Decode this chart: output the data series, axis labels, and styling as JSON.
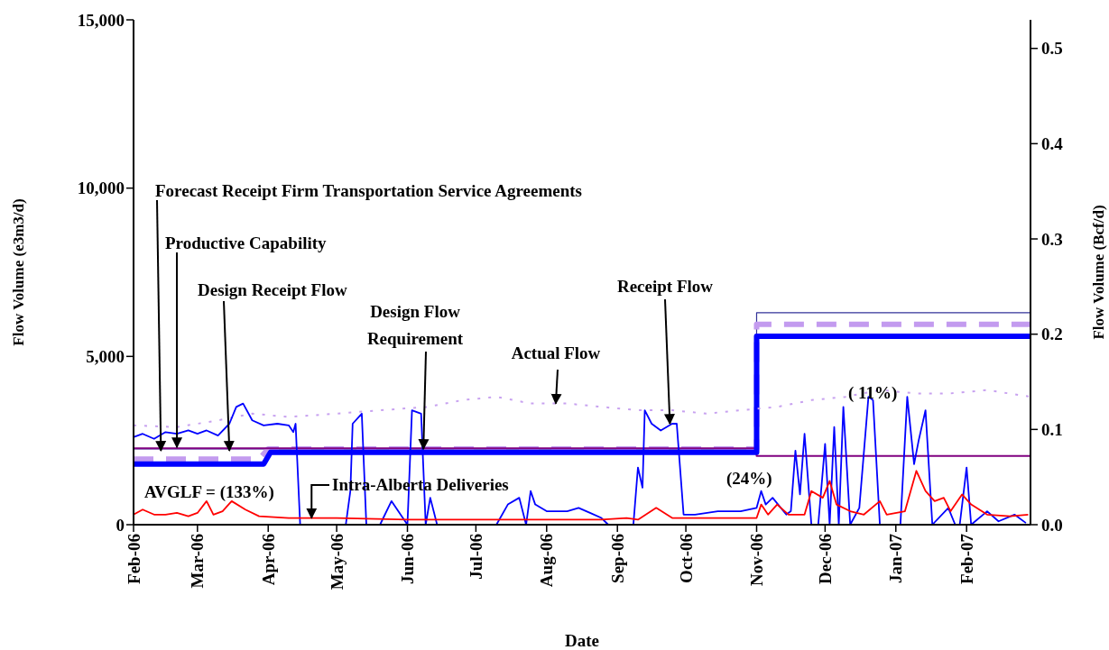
{
  "chart_data": {
    "type": "line",
    "xlabel": "Date",
    "ylabel": "Flow Volume (e3m3/d)",
    "y2label": "Flow Volume (Bcf/d)",
    "xlim": [
      "2006-02-01",
      "2007-03-01"
    ],
    "xticks": [
      {
        "value": "2006-02-01",
        "label": "Feb-06"
      },
      {
        "value": "2006-03-01",
        "label": "Mar-06"
      },
      {
        "value": "2006-04-01",
        "label": "Apr-06"
      },
      {
        "value": "2006-05-01",
        "label": "May-06"
      },
      {
        "value": "2006-06-01",
        "label": "Jun-06"
      },
      {
        "value": "2006-07-01",
        "label": "Jul-06"
      },
      {
        "value": "2006-08-01",
        "label": "Aug-06"
      },
      {
        "value": "2006-09-01",
        "label": "Sep-06"
      },
      {
        "value": "2006-10-01",
        "label": "Oct-06"
      },
      {
        "value": "2006-11-01",
        "label": "Nov-06"
      },
      {
        "value": "2006-12-01",
        "label": "Dec-06"
      },
      {
        "value": "2007-01-01",
        "label": "Jan-07"
      },
      {
        "value": "2007-02-01",
        "label": "Feb-07"
      }
    ],
    "ylim": [
      0,
      15000
    ],
    "yticks": [
      0,
      {
        "value": 5000,
        "label": "5,000"
      },
      {
        "value": 10000,
        "label": "10,000"
      },
      {
        "value": 15000,
        "label": "15,000"
      }
    ],
    "y2lim": [
      0,
      0.53
    ],
    "y2ticks": [
      {
        "value": 0,
        "label": "0.0"
      },
      0.1,
      0.2,
      0.3,
      0.4,
      0.5
    ],
    "grid": false,
    "series": [
      {
        "color": "#333399",
        "line_style": "solid",
        "x": [
          "2006-02-01",
          "2006-11-01",
          "2006-11-01",
          "2007-03-01"
        ],
        "values": [
          2250,
          2250,
          6300,
          6300
        ]
      },
      {
        "color": "#c39bef",
        "line_style": "dashed",
        "x": [
          "2006-02-01",
          "2006-03-28",
          "2006-04-01",
          "2006-11-01",
          "2006-11-01",
          "2007-03-01"
        ],
        "values": [
          1950,
          1950,
          2250,
          2250,
          5950,
          5950
        ]
      },
      {
        "color": "#800080",
        "line_style": "solid",
        "x": [
          "2006-02-01",
          "2006-11-01",
          "2006-11-01",
          "2007-03-01"
        ],
        "values": [
          2270,
          2270,
          2040,
          2040
        ]
      },
      {
        "color": "#0000ff",
        "line_style": "solid",
        "x": [
          "2006-02-01",
          "2006-03-30",
          "2006-04-02",
          "2006-11-01",
          "2006-11-01",
          "2007-03-01"
        ],
        "values": [
          1800,
          1800,
          2150,
          2150,
          5600,
          5600
        ]
      },
      {
        "color": "#c8a2f0",
        "line_style": "dotted",
        "x": [
          "2006-02-01",
          "2006-02-20",
          "2006-03-10",
          "2006-03-25",
          "2006-04-10",
          "2006-05-01",
          "2006-05-20",
          "2006-06-10",
          "2006-06-25",
          "2006-07-10",
          "2006-07-25",
          "2006-08-10",
          "2006-08-25",
          "2006-09-10",
          "2006-09-25",
          "2006-10-10",
          "2006-10-25",
          "2006-11-10",
          "2006-11-25",
          "2006-12-10",
          "2006-12-25",
          "2007-01-10",
          "2007-01-25",
          "2007-02-10",
          "2007-03-01"
        ],
        "values": [
          2950,
          2900,
          3100,
          3300,
          3200,
          3300,
          3400,
          3500,
          3700,
          3800,
          3600,
          3600,
          3500,
          3400,
          3400,
          3300,
          3400,
          3500,
          3700,
          3800,
          4000,
          3900,
          3900,
          4000,
          3800
        ]
      },
      {
        "color": "#0000ff",
        "line_style": "solid",
        "x": [
          "2006-02-01",
          "2006-02-05",
          "2006-02-10",
          "2006-02-15",
          "2006-02-20",
          "2006-02-25",
          "2006-03-01",
          "2006-03-05",
          "2006-03-10",
          "2006-03-15",
          "2006-03-18",
          "2006-03-21",
          "2006-03-25",
          "2006-03-30",
          "2006-04-05",
          "2006-04-10",
          "2006-04-12",
          "2006-04-13",
          "2006-04-15",
          "2006-05-05",
          "2006-05-07",
          "2006-05-08",
          "2006-05-12",
          "2006-05-14",
          "2006-05-20",
          "2006-05-25",
          "2006-05-27",
          "2006-06-01",
          "2006-06-03",
          "2006-06-07",
          "2006-06-09",
          "2006-06-11",
          "2006-06-14",
          "2006-07-10",
          "2006-07-15",
          "2006-07-20",
          "2006-07-23",
          "2006-07-25",
          "2006-07-27",
          "2006-08-01",
          "2006-08-10",
          "2006-08-15",
          "2006-08-20",
          "2006-08-25",
          "2006-08-28",
          "2006-09-08",
          "2006-09-10",
          "2006-09-12",
          "2006-09-13",
          "2006-09-16",
          "2006-09-20",
          "2006-09-25",
          "2006-09-27",
          "2006-09-30",
          "2006-10-05",
          "2006-10-15",
          "2006-10-25",
          "2006-11-01",
          "2006-11-03",
          "2006-11-05",
          "2006-11-08",
          "2006-11-14",
          "2006-11-16",
          "2006-11-18",
          "2006-11-20",
          "2006-11-22",
          "2006-11-25",
          "2006-11-28",
          "2006-12-01",
          "2006-12-03",
          "2006-12-05",
          "2006-12-07",
          "2006-12-09",
          "2006-12-12",
          "2006-12-16",
          "2006-12-20",
          "2006-12-22",
          "2006-12-25",
          "2007-01-03",
          "2007-01-06",
          "2007-01-09",
          "2007-01-11",
          "2007-01-14",
          "2007-01-17",
          "2007-01-24",
          "2007-01-27",
          "2007-01-29",
          "2007-02-01",
          "2007-02-03",
          "2007-02-10",
          "2007-02-15",
          "2007-02-22",
          "2007-02-27"
        ],
        "values": [
          2600,
          2700,
          2550,
          2750,
          2700,
          2800,
          2700,
          2800,
          2650,
          3000,
          3500,
          3600,
          3100,
          2950,
          3000,
          2950,
          2750,
          3000,
          0,
          0,
          1000,
          3000,
          3300,
          0,
          0,
          700,
          500,
          0,
          3400,
          3300,
          0,
          800,
          0,
          0,
          600,
          800,
          0,
          1000,
          600,
          400,
          400,
          500,
          350,
          200,
          0,
          0,
          1700,
          1100,
          3400,
          3000,
          2800,
          3000,
          3000,
          300,
          300,
          400,
          400,
          500,
          1000,
          600,
          800,
          300,
          400,
          2200,
          900,
          2700,
          0,
          0,
          2400,
          0,
          2900,
          0,
          3500,
          0,
          500,
          3800,
          3700,
          0,
          0,
          3800,
          1800,
          2500,
          3400,
          0,
          500,
          0,
          0,
          1700,
          0,
          400,
          100,
          300,
          50
        ]
      },
      {
        "color": "#ff0000",
        "line_style": "solid",
        "x": [
          "2006-02-01",
          "2006-02-05",
          "2006-02-10",
          "2006-02-15",
          "2006-02-20",
          "2006-02-25",
          "2006-03-01",
          "2006-03-05",
          "2006-03-08",
          "2006-03-12",
          "2006-03-16",
          "2006-03-22",
          "2006-03-28",
          "2006-04-10",
          "2006-05-01",
          "2006-06-01",
          "2006-07-01",
          "2006-08-01",
          "2006-08-25",
          "2006-09-05",
          "2006-09-10",
          "2006-09-18",
          "2006-09-25",
          "2006-10-01",
          "2006-10-15",
          "2006-11-01",
          "2006-11-03",
          "2006-11-06",
          "2006-11-10",
          "2006-11-15",
          "2006-11-22",
          "2006-11-25",
          "2006-11-30",
          "2006-12-03",
          "2006-12-06",
          "2006-12-12",
          "2006-12-18",
          "2006-12-25",
          "2006-12-28",
          "2007-01-05",
          "2007-01-10",
          "2007-01-14",
          "2007-01-18",
          "2007-01-22",
          "2007-01-25",
          "2007-01-30",
          "2007-02-03",
          "2007-02-10",
          "2007-02-20",
          "2007-02-28"
        ],
        "values": [
          300,
          450,
          300,
          300,
          350,
          250,
          350,
          700,
          300,
          400,
          700,
          450,
          250,
          200,
          200,
          150,
          150,
          150,
          150,
          200,
          150,
          500,
          200,
          200,
          200,
          200,
          600,
          300,
          600,
          300,
          300,
          1000,
          800,
          1300,
          600,
          400,
          300,
          700,
          300,
          400,
          1600,
          1000,
          700,
          800,
          400,
          900,
          600,
          300,
          250,
          300
        ]
      }
    ],
    "annotations": [
      {
        "text": "Forecast Receipt Firm Transportation Service Agreements",
        "x": "2006-02-13",
        "y": 2200
      },
      {
        "text": "Productive Capability",
        "x": "2006-02-20",
        "y": 2300
      },
      {
        "text": "Design Receipt Flow",
        "x": "2006-03-15",
        "y": 2200
      },
      {
        "text": "Design Flow Requirement",
        "x": "2006-06-08",
        "y": 2250
      },
      {
        "text": "Actual Flow",
        "x": "2006-08-05",
        "y": 3600
      },
      {
        "text": "Receipt Flow",
        "x": "2006-09-24",
        "y": 3000
      },
      {
        "text": "Intra-Alberta Deliveries",
        "x": "2006-04-20",
        "y": 200
      },
      "AVGLF = (133%)",
      "(24%)",
      "( 11%)"
    ]
  }
}
